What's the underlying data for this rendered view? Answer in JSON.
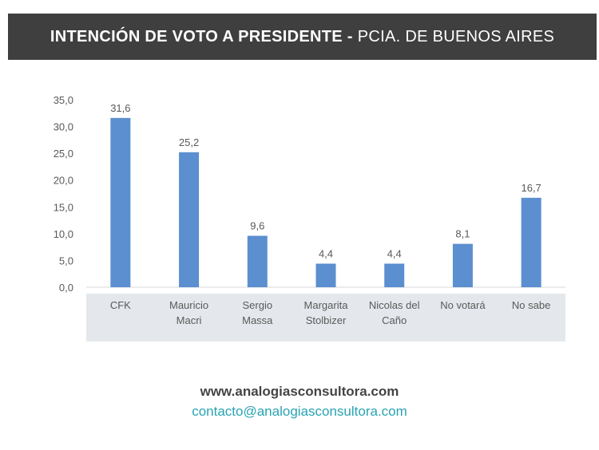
{
  "header": {
    "title_bold": "INTENCIÓN DE VOTO A PRESIDENTE -",
    "title_light": "PCIA. DE BUENOS AIRES"
  },
  "chart_data": {
    "type": "bar",
    "categories": [
      [
        "CFK"
      ],
      [
        "Mauricio",
        "Macri"
      ],
      [
        "Sergio",
        "Massa"
      ],
      [
        "Margarita",
        "Stolbizer"
      ],
      [
        "Nicolas del",
        "Caño"
      ],
      [
        "No votará"
      ],
      [
        "No sabe"
      ]
    ],
    "values": [
      31.6,
      25.2,
      9.6,
      4.4,
      4.4,
      8.1,
      16.7
    ],
    "value_labels": [
      "31,6",
      "25,2",
      "9,6",
      "4,4",
      "4,4",
      "8,1",
      "16,7"
    ],
    "yticks": [
      "0,0",
      "5,0",
      "10,0",
      "15,0",
      "20,0",
      "25,0",
      "30,0",
      "35,0"
    ],
    "ylim": [
      0,
      35
    ],
    "bar_color": "#5b8fcf",
    "grid": false,
    "legend": "none"
  },
  "footer": {
    "website": "www.analogiasconsultora.com",
    "email": "contacto@analogiasconsultora.com"
  }
}
